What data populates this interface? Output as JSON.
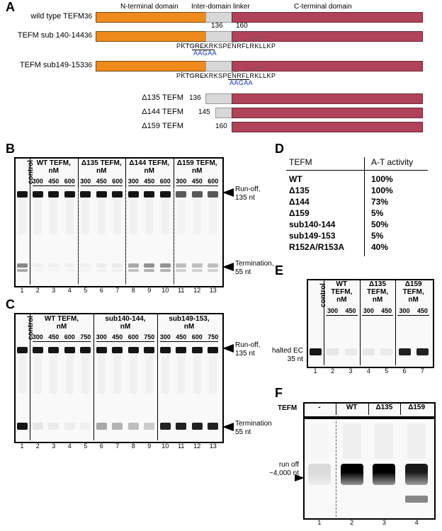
{
  "panelA": {
    "headers": {
      "nterm": "N-terminal domain",
      "linker": "Inter-domain linker",
      "cterm": "C-terminal domain"
    },
    "positions": {
      "start": 36,
      "linker_start": 136,
      "linker_end": 160
    },
    "seq_full": "PKTGREKRKSPENRFLRKLLKP",
    "sub_replace": "AAGAA",
    "constructs": [
      {
        "name": "wild type TEFM",
        "left_aa": "36",
        "n_start": 120,
        "n_end": 275,
        "lk_start": 275,
        "lk_end": 312,
        "c_start": 312,
        "c_end": 580,
        "show_linker_nums": true
      },
      {
        "name": "TEFM sub 140-144",
        "left_aa": "36",
        "n_start": 120,
        "n_end": 275,
        "lk_start": 275,
        "lk_end": 312,
        "c_start": 312,
        "c_end": 580,
        "underline_from": 4,
        "underline_to": 9
      },
      {
        "name": "TEFM sub149-153",
        "left_aa": "36",
        "n_start": 120,
        "n_end": 275,
        "lk_start": 275,
        "lk_end": 312,
        "c_start": 312,
        "c_end": 580,
        "underline_from": 13,
        "underline_to": 18
      },
      {
        "name": "Δ135 TEFM",
        "left_aa": "136",
        "lk_start": 275,
        "lk_end": 312,
        "c_start": 312,
        "c_end": 580
      },
      {
        "name": "Δ144 TEFM",
        "left_aa": "145",
        "lk_start": 289,
        "lk_end": 312,
        "c_start": 312,
        "c_end": 580
      },
      {
        "name": "Δ159 TEFM",
        "left_aa": "160",
        "c_start": 312,
        "c_end": 580
      }
    ]
  },
  "panelB": {
    "groups": [
      {
        "label": "WT TEFM,\nnM",
        "conc": [
          "300",
          "450",
          "600"
        ]
      },
      {
        "label": "Δ135 TEFM,\nnM",
        "conc": [
          "300",
          "450",
          "600"
        ]
      },
      {
        "label": "Δ144 TEFM,\nnM",
        "conc": [
          "300",
          "450",
          "600"
        ]
      },
      {
        "label": "Δ159 TEFM,\nnM",
        "conc": [
          "300",
          "450",
          "600"
        ]
      }
    ],
    "control": "control",
    "runoff_label": "Run-off,\n135 nt",
    "term_label": "Termination,\n55 nt",
    "lane_count": 13,
    "runoff": {
      "intensity": [
        1,
        1,
        1,
        1,
        1,
        1,
        1,
        1,
        1,
        1,
        0.7,
        0.7,
        0.7
      ],
      "height": 9
    },
    "termination": {
      "intensity": [
        0.5,
        0.04,
        0.04,
        0.04,
        0.04,
        0.05,
        0.06,
        0.35,
        0.45,
        0.45,
        0.25,
        0.25,
        0.25
      ],
      "height": 6
    }
  },
  "panelC": {
    "groups": [
      {
        "label": "WT TEFM,\nnM",
        "conc": [
          "300",
          "450",
          "600",
          "750"
        ]
      },
      {
        "label": "sub140-144,\nnM",
        "conc": [
          "300",
          "450",
          "600",
          "750"
        ]
      },
      {
        "label": "sub149-153,\nnM",
        "conc": [
          "300",
          "450",
          "600",
          "750"
        ]
      }
    ],
    "control": "control",
    "runoff_label": "Run-off,\n135 nt",
    "term_label": "Termination\n55 nt",
    "lane_count": 13,
    "runoff": {
      "intensity": [
        1,
        1,
        1,
        1,
        1,
        1,
        1,
        1,
        1,
        1,
        1,
        1,
        1
      ],
      "height": 9
    },
    "termination": {
      "intensity": [
        1,
        0.08,
        0.06,
        0.05,
        0.04,
        0.35,
        0.3,
        0.25,
        0.2,
        0.95,
        0.95,
        0.95,
        0.95
      ],
      "height": 10
    }
  },
  "panelD": {
    "header_left": "TEFM",
    "header_right": "A-T activity",
    "rows": [
      [
        "WT",
        "100%"
      ],
      [
        "Δ135",
        "100%"
      ],
      [
        "Δ144",
        "73%"
      ],
      [
        "Δ159",
        "5%"
      ],
      [
        "sub140-144",
        "50%"
      ],
      [
        "sub149-153",
        "5%"
      ],
      [
        "R152A/R153A",
        "40%"
      ]
    ]
  },
  "panelE": {
    "groups": [
      {
        "label": "WT\nTEFM,\nnM",
        "conc": [
          "300",
          "450"
        ]
      },
      {
        "label": "Δ135\nTEFM,\nnM",
        "conc": [
          "300",
          "450"
        ]
      },
      {
        "label": "Δ159\nTEFM,\nnM",
        "conc": [
          "300",
          "450"
        ]
      }
    ],
    "control": "control",
    "halted_label": "halted EC\n35 nt",
    "lane_count": 7,
    "band": {
      "intensity": [
        1,
        0.08,
        0.06,
        0.08,
        0.06,
        0.95,
        0.95
      ],
      "height": 10
    }
  },
  "panelF": {
    "header": "TEFM",
    "cols": [
      "-",
      "WT",
      "Δ135",
      "Δ159"
    ],
    "runoff_label": "run off\n~4,000 nt",
    "runoff_intensity": [
      0.12,
      1,
      1,
      0.9
    ],
    "lower_intensity": [
      0,
      0,
      0,
      0.5
    ],
    "lane_count": 4
  },
  "colors": {
    "nterm": "#ef8a1c",
    "linker": "#d8d8d8",
    "cterm": "#b0425a",
    "band": "#151515"
  }
}
